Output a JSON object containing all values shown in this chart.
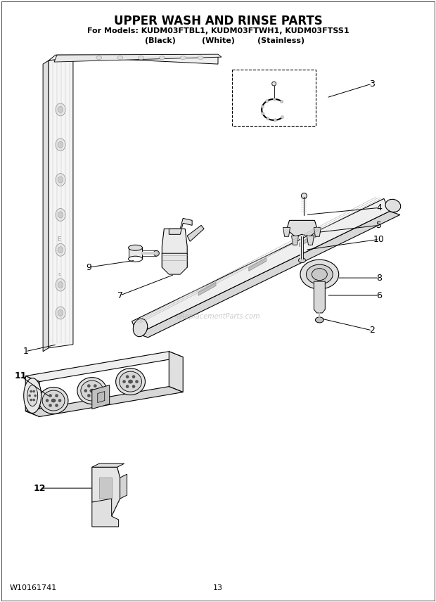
{
  "title": "UPPER WASH AND RINSE PARTS",
  "subtitle_line1": "For Models: KUDM03FTBL1, KUDM03FTWH1, KUDM03FTSS1",
  "subtitle_line2_black": "(Black)",
  "subtitle_line2_white": "(White)",
  "subtitle_line2_stainless": "(Stainless)",
  "footer_left": "W10161741",
  "footer_center": "13",
  "bg_color": "#ffffff",
  "title_fontsize": 12,
  "subtitle_fontsize": 8,
  "footer_fontsize": 8,
  "fig_width": 6.2,
  "fig_height": 8.56,
  "watermark_text": "eReplacementParts.com"
}
